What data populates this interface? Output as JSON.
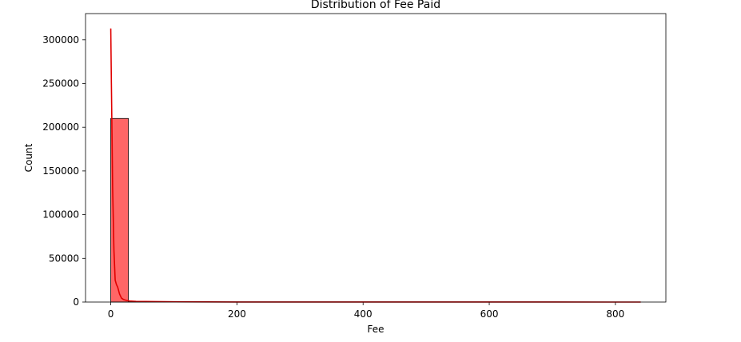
{
  "chart_data": {
    "type": "bar",
    "title": "Distribution of Fee Paid",
    "xlabel": "Fee",
    "ylabel": "Count",
    "xlim": [
      -40,
      880
    ],
    "ylim": [
      0,
      330000
    ],
    "x_ticks": [
      0,
      200,
      400,
      600,
      800
    ],
    "y_ticks": [
      0,
      50000,
      100000,
      150000,
      200000,
      250000,
      300000
    ],
    "bins": [
      {
        "x0": 0,
        "x1": 28,
        "count": 210000
      },
      {
        "x0": 28,
        "x1": 56,
        "count": 600
      },
      {
        "x0": 56,
        "x1": 84,
        "count": 150
      },
      {
        "x0": 84,
        "x1": 112,
        "count": 60
      },
      {
        "x0": 112,
        "x1": 140,
        "count": 30
      },
      {
        "x0": 140,
        "x1": 168,
        "count": 20
      },
      {
        "x0": 168,
        "x1": 196,
        "count": 10
      },
      {
        "x0": 196,
        "x1": 224,
        "count": 10
      },
      {
        "x0": 224,
        "x1": 252,
        "count": 5
      },
      {
        "x0": 252,
        "x1": 280,
        "count": 5
      },
      {
        "x0": 280,
        "x1": 308,
        "count": 4
      },
      {
        "x0": 308,
        "x1": 336,
        "count": 3
      },
      {
        "x0": 336,
        "x1": 364,
        "count": 3
      },
      {
        "x0": 364,
        "x1": 392,
        "count": 2
      },
      {
        "x0": 392,
        "x1": 420,
        "count": 2
      },
      {
        "x0": 420,
        "x1": 448,
        "count": 2
      },
      {
        "x0": 448,
        "x1": 476,
        "count": 1
      },
      {
        "x0": 476,
        "x1": 504,
        "count": 1
      },
      {
        "x0": 504,
        "x1": 532,
        "count": 1
      },
      {
        "x0": 532,
        "x1": 560,
        "count": 1
      },
      {
        "x0": 560,
        "x1": 588,
        "count": 1
      },
      {
        "x0": 588,
        "x1": 616,
        "count": 1
      },
      {
        "x0": 616,
        "x1": 644,
        "count": 1
      },
      {
        "x0": 644,
        "x1": 672,
        "count": 1
      },
      {
        "x0": 672,
        "x1": 700,
        "count": 1
      },
      {
        "x0": 700,
        "x1": 728,
        "count": 1
      },
      {
        "x0": 728,
        "x1": 756,
        "count": 1
      },
      {
        "x0": 756,
        "x1": 784,
        "count": 1
      },
      {
        "x0": 784,
        "x1": 812,
        "count": 1
      },
      {
        "x0": 812,
        "x1": 840,
        "count": 1
      }
    ],
    "kde": {
      "x": [
        0,
        1,
        3,
        5,
        7,
        9,
        11,
        14,
        17,
        20,
        25,
        30,
        40,
        55,
        70,
        100,
        150,
        200,
        300,
        400,
        500,
        600,
        700,
        800,
        840
      ],
      "y": [
        313000,
        250000,
        130000,
        60000,
        25000,
        20000,
        17000,
        9000,
        4500,
        3000,
        1800,
        1200,
        800,
        600,
        500,
        300,
        150,
        100,
        60,
        40,
        30,
        20,
        15,
        10,
        8
      ]
    },
    "bar_color": "#ff6666",
    "bar_edge_color": "#000000",
    "kde_color": "#e00000",
    "grid": false,
    "legend": false
  }
}
